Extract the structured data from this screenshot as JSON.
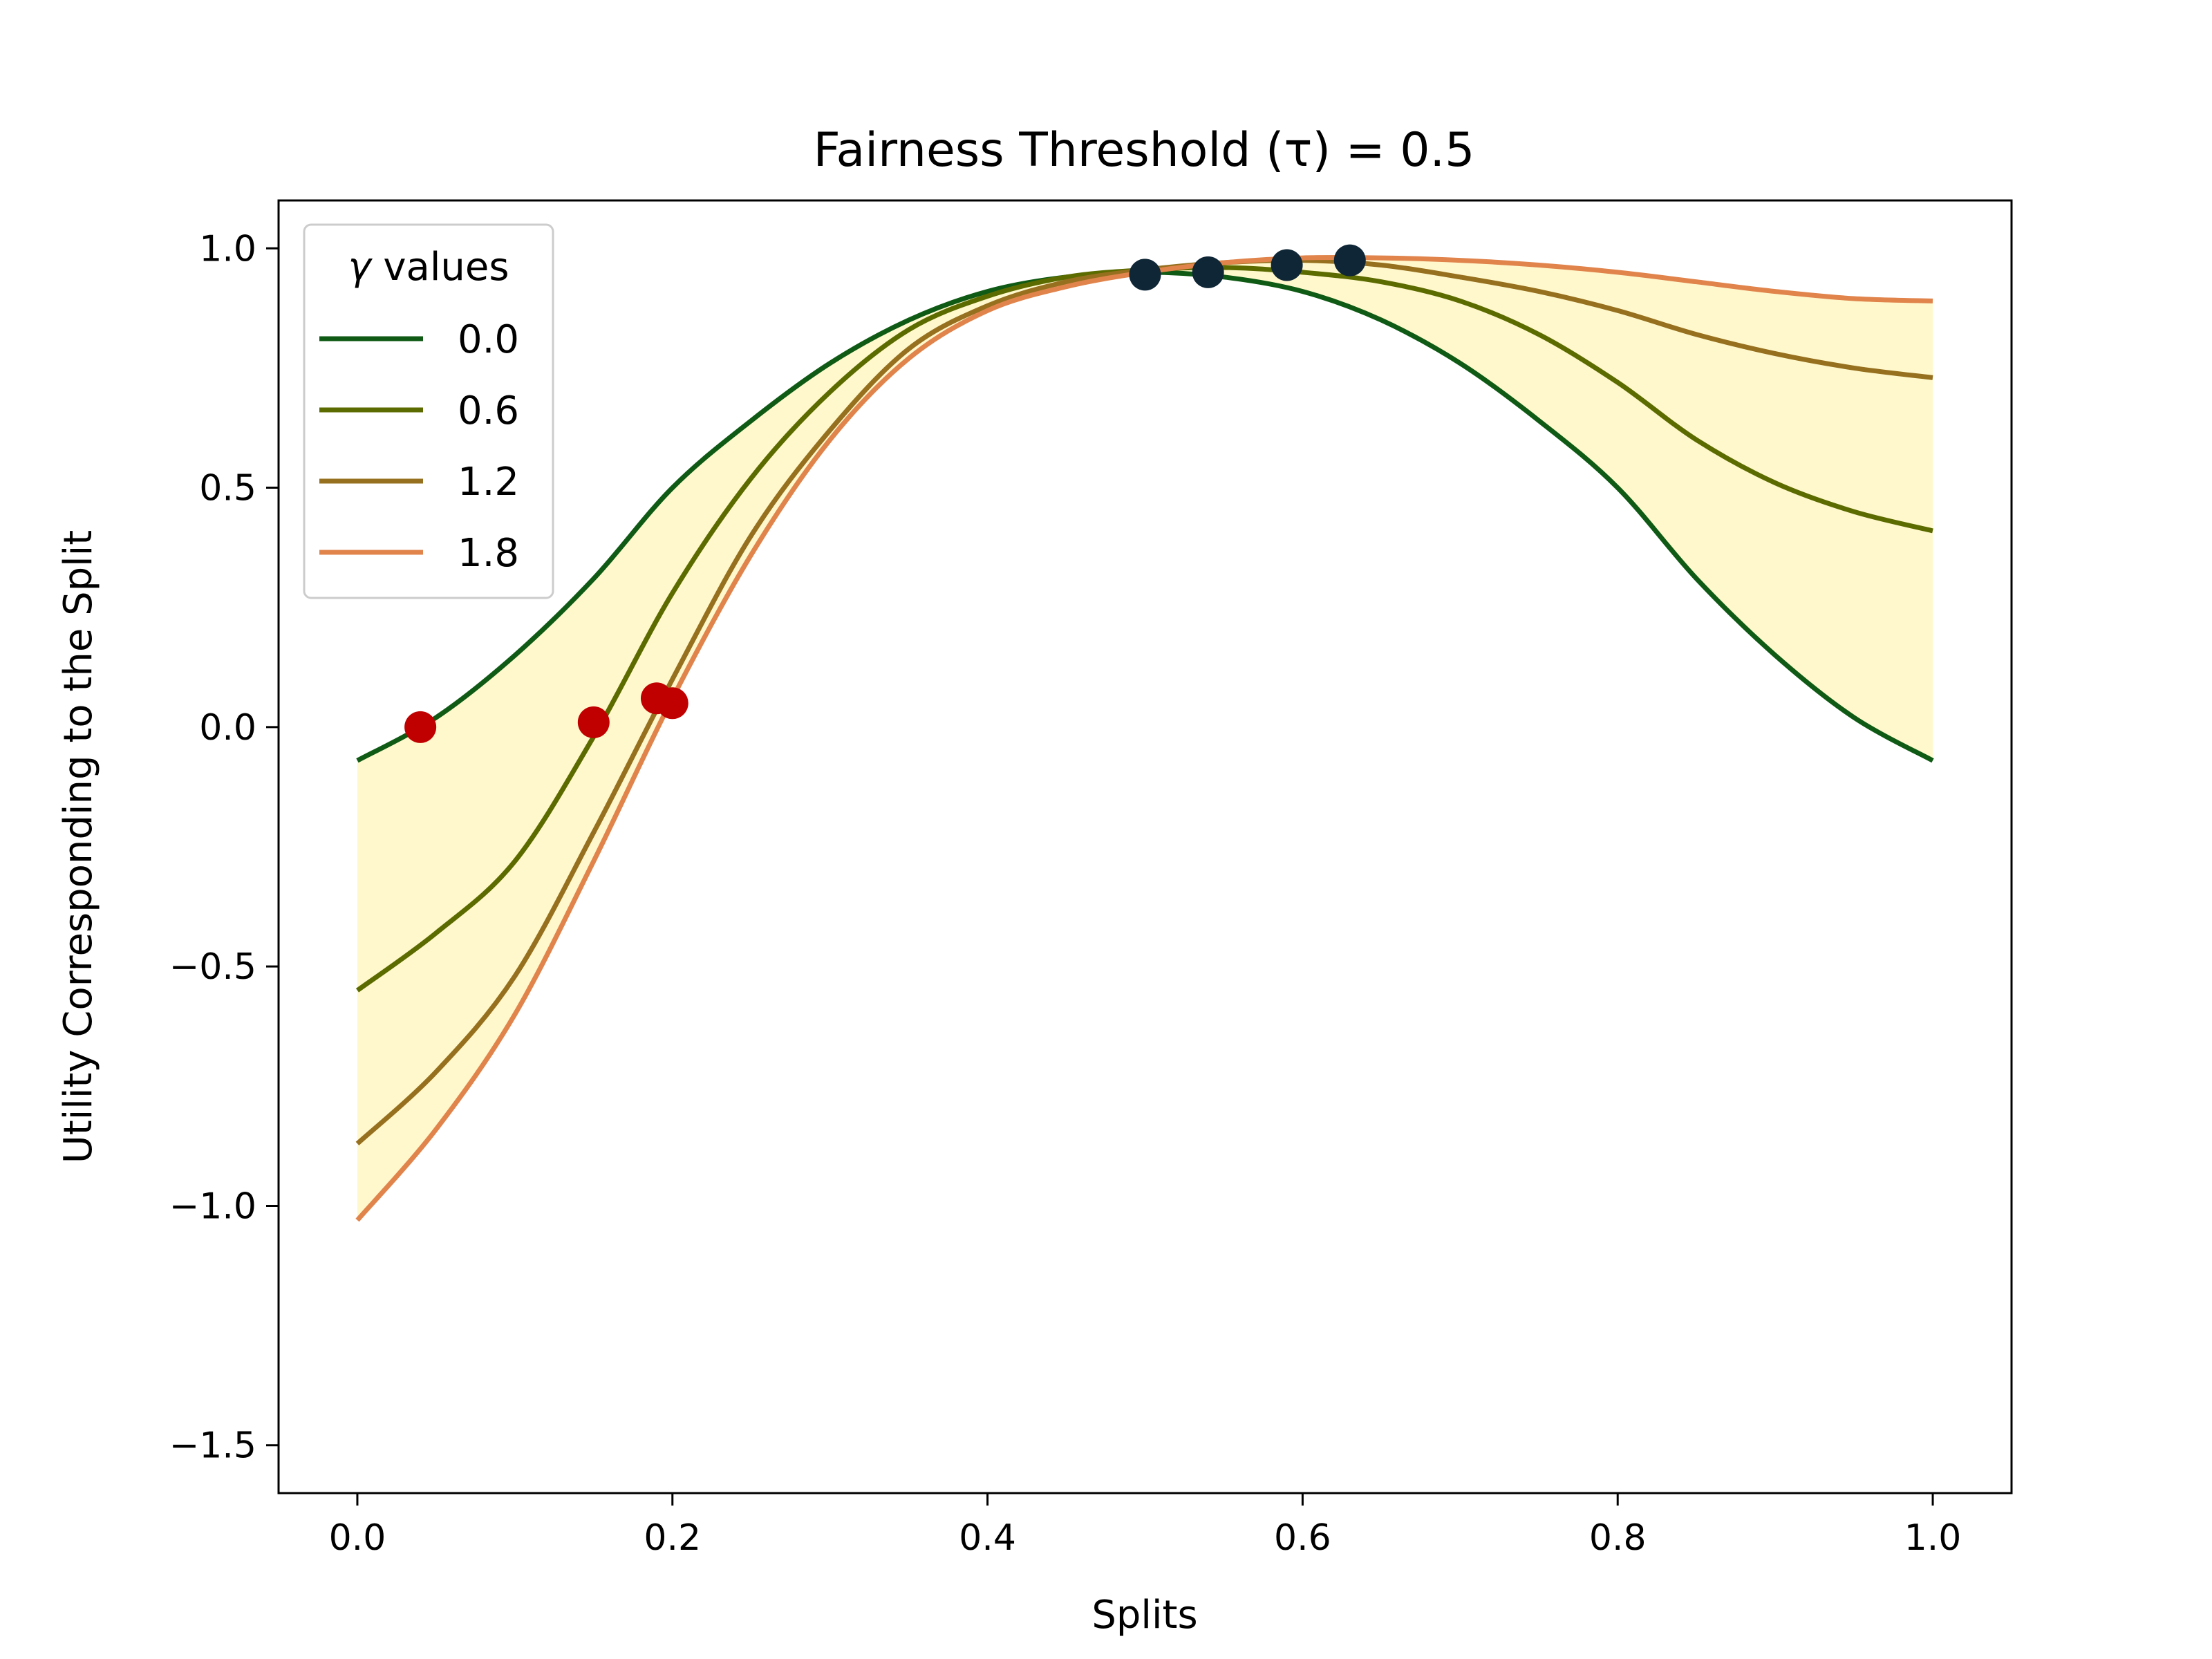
{
  "chart_data": {
    "type": "line",
    "title": "Fairness Threshold (τ) = 0.5",
    "xlabel": "Splits",
    "ylabel": "Utility Corresponding to the Split",
    "xlim": [
      -0.05,
      1.05
    ],
    "ylim": [
      -1.6,
      1.1
    ],
    "x_ticks": [
      0.0,
      0.2,
      0.4,
      0.6,
      0.8,
      1.0
    ],
    "x_tick_labels": [
      "0.0",
      "0.2",
      "0.4",
      "0.6",
      "0.8",
      "1.0"
    ],
    "y_ticks": [
      1.0,
      0.5,
      0.0,
      -0.5,
      -1.0,
      -1.5
    ],
    "y_tick_labels": [
      "1.0",
      "0.5",
      "0.0",
      "−0.5",
      "−1.0",
      "−1.5"
    ],
    "grid": false,
    "legend": {
      "title": "γ values",
      "placement": "top-left"
    },
    "x": [
      0.0,
      0.05,
      0.1,
      0.15,
      0.2,
      0.25,
      0.3,
      0.35,
      0.4,
      0.45,
      0.5,
      0.55,
      0.6,
      0.65,
      0.7,
      0.75,
      0.8,
      0.85,
      0.9,
      0.95,
      1.0
    ],
    "series": [
      {
        "name": "0.0",
        "color": "#0f5a14",
        "values": [
          -0.07,
          0.02,
          0.15,
          0.31,
          0.5,
          0.64,
          0.76,
          0.85,
          0.91,
          0.94,
          0.95,
          0.94,
          0.91,
          0.85,
          0.76,
          0.64,
          0.5,
          0.31,
          0.15,
          0.02,
          -0.07
        ]
      },
      {
        "name": "0.6",
        "color": "#5c6b00",
        "values": [
          -0.55,
          -0.43,
          -0.28,
          -0.02,
          0.28,
          0.52,
          0.7,
          0.83,
          0.9,
          0.94,
          0.955,
          0.96,
          0.95,
          0.93,
          0.89,
          0.82,
          0.72,
          0.6,
          0.51,
          0.45,
          0.41
        ]
      },
      {
        "name": "1.2",
        "color": "#96701e",
        "values": [
          -0.87,
          -0.72,
          -0.52,
          -0.22,
          0.1,
          0.4,
          0.62,
          0.79,
          0.88,
          0.93,
          0.955,
          0.97,
          0.975,
          0.965,
          0.94,
          0.91,
          0.87,
          0.82,
          0.78,
          0.75,
          0.73
        ]
      },
      {
        "name": "1.8",
        "color": "#e0844c",
        "values": [
          -1.03,
          -0.84,
          -0.6,
          -0.28,
          0.06,
          0.36,
          0.6,
          0.77,
          0.87,
          0.92,
          0.95,
          0.97,
          0.98,
          0.98,
          0.975,
          0.965,
          0.95,
          0.93,
          0.91,
          0.895,
          0.89
        ]
      }
    ],
    "band": {
      "color": "#fff8cc",
      "between": [
        "min",
        "max"
      ]
    },
    "red_points": {
      "color": "#c00000",
      "x": [
        0.04,
        0.15,
        0.19,
        0.2
      ],
      "y": [
        0.0,
        0.01,
        0.06,
        0.05
      ]
    },
    "dark_points": {
      "color": "#0e2636",
      "x": [
        0.5,
        0.54,
        0.59,
        0.63
      ],
      "y": [
        0.945,
        0.95,
        0.965,
        0.975
      ]
    }
  }
}
